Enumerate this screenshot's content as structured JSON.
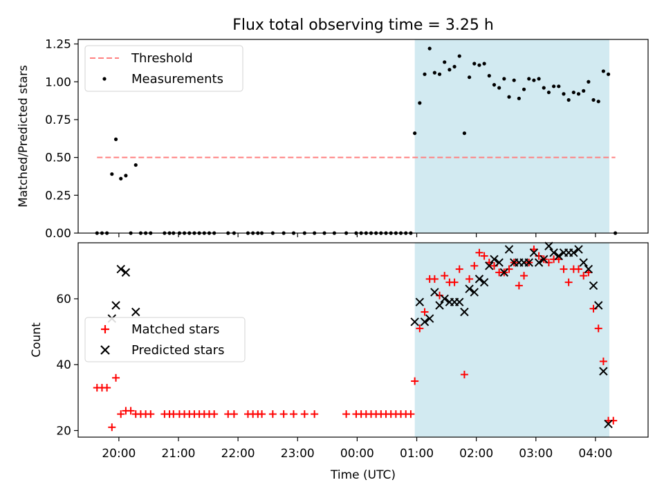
{
  "title": "Flux total observing time = 3.25 h",
  "colors": {
    "band": "#add8e6",
    "threshold": "#ff7f7f",
    "matched": "#ff0000",
    "predicted": "#000000",
    "measurement": "#000000"
  },
  "chart_data": [
    {
      "type": "scatter",
      "ylabel": "Matched/Predicted stars",
      "xlabel": "",
      "ylim": [
        0,
        1.28
      ],
      "xlim": [
        "19:19",
        "04:53"
      ],
      "yticks": [
        0,
        0.25,
        0.5,
        0.75,
        1.0,
        1.25
      ],
      "ytick_labels": [
        "0.00",
        "0.25",
        "0.50",
        "0.75",
        "1.00",
        "1.25"
      ],
      "shaded_interval": [
        "00:58",
        "04:14"
      ],
      "threshold": {
        "name": "Threshold",
        "value": 0.5,
        "x_range": [
          "19:38",
          "04:20"
        ]
      },
      "legend": {
        "position": "top-left",
        "entries": [
          "Threshold",
          "Measurements"
        ]
      },
      "series": [
        {
          "name": "Measurements",
          "points": [
            [
              "19:38",
              0
            ],
            [
              "19:43",
              0
            ],
            [
              "19:48",
              0
            ],
            [
              "19:53",
              0.39
            ],
            [
              "19:57",
              0.62
            ],
            [
              "20:02",
              0.36
            ],
            [
              "20:07",
              0.38
            ],
            [
              "20:12",
              0
            ],
            [
              "20:17",
              0.45
            ],
            [
              "20:22",
              0
            ],
            [
              "20:27",
              0
            ],
            [
              "20:32",
              0
            ],
            [
              "20:46",
              0
            ],
            [
              "20:51",
              0
            ],
            [
              "20:55",
              0
            ],
            [
              "21:01",
              0
            ],
            [
              "21:06",
              0
            ],
            [
              "21:11",
              0
            ],
            [
              "21:16",
              0
            ],
            [
              "21:21",
              0
            ],
            [
              "21:26",
              0
            ],
            [
              "21:31",
              0
            ],
            [
              "21:36",
              0
            ],
            [
              "21:50",
              0
            ],
            [
              "21:56",
              0
            ],
            [
              "22:10",
              0
            ],
            [
              "22:15",
              0
            ],
            [
              "22:20",
              0
            ],
            [
              "22:24",
              0
            ],
            [
              "22:35",
              0
            ],
            [
              "22:46",
              0
            ],
            [
              "22:56",
              0
            ],
            [
              "23:07",
              0
            ],
            [
              "23:17",
              0
            ],
            [
              "23:27",
              0
            ],
            [
              "23:37",
              0
            ],
            [
              "23:49",
              0
            ],
            [
              "23:59",
              0
            ],
            [
              "00:04",
              0
            ],
            [
              "00:09",
              0
            ],
            [
              "00:14",
              0
            ],
            [
              "00:19",
              0
            ],
            [
              "00:24",
              0
            ],
            [
              "00:29",
              0
            ],
            [
              "00:34",
              0
            ],
            [
              "00:39",
              0
            ],
            [
              "00:44",
              0
            ],
            [
              "00:49",
              0
            ],
            [
              "00:54",
              0
            ],
            [
              "00:58",
              0.66
            ],
            [
              "01:03",
              0.86
            ],
            [
              "01:08",
              1.05
            ],
            [
              "01:13",
              1.22
            ],
            [
              "01:18",
              1.06
            ],
            [
              "01:23",
              1.05
            ],
            [
              "01:28",
              1.13
            ],
            [
              "01:33",
              1.08
            ],
            [
              "01:38",
              1.1
            ],
            [
              "01:43",
              1.17
            ],
            [
              "01:48",
              0.66
            ],
            [
              "01:53",
              1.03
            ],
            [
              "01:58",
              1.12
            ],
            [
              "02:03",
              1.11
            ],
            [
              "02:08",
              1.12
            ],
            [
              "02:13",
              1.04
            ],
            [
              "02:18",
              0.98
            ],
            [
              "02:23",
              0.96
            ],
            [
              "02:28",
              1.02
            ],
            [
              "02:33",
              0.9
            ],
            [
              "02:38",
              1.01
            ],
            [
              "02:43",
              0.89
            ],
            [
              "02:48",
              0.95
            ],
            [
              "02:53",
              1.02
            ],
            [
              "02:58",
              1.01
            ],
            [
              "03:03",
              1.02
            ],
            [
              "03:08",
              0.96
            ],
            [
              "03:13",
              0.93
            ],
            [
              "03:18",
              0.97
            ],
            [
              "03:23",
              0.97
            ],
            [
              "03:28",
              0.92
            ],
            [
              "03:33",
              0.88
            ],
            [
              "03:38",
              0.93
            ],
            [
              "03:43",
              0.92
            ],
            [
              "03:48",
              0.94
            ],
            [
              "03:53",
              1.0
            ],
            [
              "03:58",
              0.88
            ],
            [
              "04:03",
              0.87
            ],
            [
              "04:08",
              1.07
            ],
            [
              "04:13",
              1.05
            ],
            [
              "04:20",
              0
            ]
          ]
        }
      ]
    },
    {
      "type": "scatter",
      "ylabel": "Count",
      "xlabel": "Time (UTC)",
      "ylim": [
        18,
        77
      ],
      "xlim": [
        "19:19",
        "04:53"
      ],
      "yticks": [
        20,
        40,
        60
      ],
      "ytick_labels": [
        "20",
        "40",
        "60"
      ],
      "xticks": [
        "20:00",
        "21:00",
        "22:00",
        "23:00",
        "00:00",
        "01:00",
        "02:00",
        "03:00",
        "04:00"
      ],
      "shaded_interval": [
        "00:58",
        "04:14"
      ],
      "legend": {
        "position": "center-left",
        "entries": [
          "Matched stars",
          "Predicted stars"
        ]
      },
      "series": [
        {
          "name": "Matched stars",
          "marker": "plus",
          "points": [
            [
              "19:38",
              33
            ],
            [
              "19:43",
              33
            ],
            [
              "19:48",
              33
            ],
            [
              "19:53",
              21
            ],
            [
              "19:57",
              36
            ],
            [
              "20:02",
              25
            ],
            [
              "20:07",
              26
            ],
            [
              "20:12",
              26
            ],
            [
              "20:17",
              25
            ],
            [
              "20:22",
              25
            ],
            [
              "20:27",
              25
            ],
            [
              "20:32",
              25
            ],
            [
              "20:46",
              25
            ],
            [
              "20:51",
              25
            ],
            [
              "20:55",
              25
            ],
            [
              "21:01",
              25
            ],
            [
              "21:06",
              25
            ],
            [
              "21:11",
              25
            ],
            [
              "21:16",
              25
            ],
            [
              "21:21",
              25
            ],
            [
              "21:26",
              25
            ],
            [
              "21:31",
              25
            ],
            [
              "21:36",
              25
            ],
            [
              "21:50",
              25
            ],
            [
              "21:56",
              25
            ],
            [
              "22:10",
              25
            ],
            [
              "22:15",
              25
            ],
            [
              "22:20",
              25
            ],
            [
              "22:24",
              25
            ],
            [
              "22:35",
              25
            ],
            [
              "22:46",
              25
            ],
            [
              "22:56",
              25
            ],
            [
              "23:07",
              25
            ],
            [
              "23:17",
              25
            ],
            [
              "23:49",
              25
            ],
            [
              "23:59",
              25
            ],
            [
              "00:04",
              25
            ],
            [
              "00:09",
              25
            ],
            [
              "00:14",
              25
            ],
            [
              "00:19",
              25
            ],
            [
              "00:24",
              25
            ],
            [
              "00:29",
              25
            ],
            [
              "00:34",
              25
            ],
            [
              "00:39",
              25
            ],
            [
              "00:44",
              25
            ],
            [
              "00:49",
              25
            ],
            [
              "00:54",
              25
            ],
            [
              "00:58",
              35
            ],
            [
              "01:03",
              51
            ],
            [
              "01:08",
              56
            ],
            [
              "01:13",
              66
            ],
            [
              "01:18",
              66
            ],
            [
              "01:23",
              61
            ],
            [
              "01:28",
              67
            ],
            [
              "01:33",
              65
            ],
            [
              "01:38",
              65
            ],
            [
              "01:43",
              69
            ],
            [
              "01:48",
              37
            ],
            [
              "01:53",
              66
            ],
            [
              "01:58",
              70
            ],
            [
              "02:03",
              74
            ],
            [
              "02:08",
              73
            ],
            [
              "02:13",
              71
            ],
            [
              "02:18",
              70
            ],
            [
              "02:23",
              68
            ],
            [
              "02:28",
              68
            ],
            [
              "02:33",
              69
            ],
            [
              "02:38",
              71
            ],
            [
              "02:43",
              64
            ],
            [
              "02:48",
              67
            ],
            [
              "02:53",
              71
            ],
            [
              "02:58",
              75
            ],
            [
              "03:03",
              73
            ],
            [
              "03:08",
              72
            ],
            [
              "03:13",
              71
            ],
            [
              "03:18",
              72
            ],
            [
              "03:23",
              72
            ],
            [
              "03:28",
              69
            ],
            [
              "03:33",
              65
            ],
            [
              "03:38",
              69
            ],
            [
              "03:43",
              69
            ],
            [
              "03:48",
              67
            ],
            [
              "03:53",
              68
            ],
            [
              "03:58",
              57
            ],
            [
              "04:03",
              51
            ],
            [
              "04:08",
              41
            ],
            [
              "04:13",
              23
            ],
            [
              "04:18",
              23
            ]
          ]
        },
        {
          "name": "Predicted stars",
          "marker": "x",
          "points": [
            [
              "19:53",
              54
            ],
            [
              "19:57",
              58
            ],
            [
              "20:02",
              69
            ],
            [
              "20:07",
              68
            ],
            [
              "20:17",
              56
            ],
            [
              "00:58",
              53
            ],
            [
              "01:03",
              59
            ],
            [
              "01:08",
              53
            ],
            [
              "01:13",
              54
            ],
            [
              "01:18",
              62
            ],
            [
              "01:23",
              58
            ],
            [
              "01:28",
              60
            ],
            [
              "01:33",
              59
            ],
            [
              "01:38",
              59
            ],
            [
              "01:43",
              59
            ],
            [
              "01:48",
              56
            ],
            [
              "01:53",
              63
            ],
            [
              "01:58",
              62
            ],
            [
              "02:03",
              66
            ],
            [
              "02:08",
              65
            ],
            [
              "02:13",
              70
            ],
            [
              "02:18",
              72
            ],
            [
              "02:23",
              71
            ],
            [
              "02:28",
              68
            ],
            [
              "02:33",
              75
            ],
            [
              "02:38",
              71
            ],
            [
              "02:43",
              71
            ],
            [
              "02:48",
              71
            ],
            [
              "02:53",
              71
            ],
            [
              "02:58",
              74
            ],
            [
              "03:03",
              71
            ],
            [
              "03:08",
              72
            ],
            [
              "03:13",
              76
            ],
            [
              "03:18",
              74
            ],
            [
              "03:23",
              73
            ],
            [
              "03:28",
              74
            ],
            [
              "03:33",
              74
            ],
            [
              "03:38",
              74
            ],
            [
              "03:43",
              75
            ],
            [
              "03:48",
              71
            ],
            [
              "03:53",
              69
            ],
            [
              "03:58",
              64
            ],
            [
              "04:03",
              58
            ],
            [
              "04:08",
              38
            ],
            [
              "04:13",
              22
            ]
          ]
        }
      ]
    }
  ]
}
